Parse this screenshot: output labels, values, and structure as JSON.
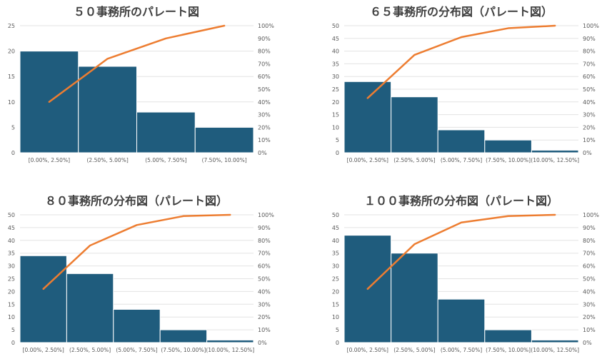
{
  "chart_data": [
    {
      "type": "bar",
      "title": "５０事務所のパレート図",
      "categories": [
        "[0.00%, 2.50%]",
        "(2.50%, 5.00%]",
        "(5.00%, 7.50%]",
        "(7.50%, 10.00%]"
      ],
      "values": [
        20,
        17,
        8,
        5
      ],
      "cumulative_percent": [
        40,
        74,
        90,
        100
      ],
      "ylim": [
        0,
        25
      ],
      "yticks": [
        0,
        5,
        10,
        15,
        20,
        25
      ],
      "y2lim": [
        0,
        100
      ],
      "y2ticks": [
        "0%",
        "10%",
        "20%",
        "30%",
        "40%",
        "50%",
        "60%",
        "70%",
        "80%",
        "90%",
        "100%"
      ],
      "grid": true,
      "bar_color": "#1f5c7d",
      "line_color": "#ed7d31"
    },
    {
      "type": "bar",
      "title": "６５事務所の分布図（パレート図）",
      "categories": [
        "[0.00%, 2.50%]",
        "(2.50%, 5.00%]",
        "(5.00%, 7.50%]",
        "(7.50%, 10.00%]",
        "(10.00%, 12.50%]"
      ],
      "values": [
        28,
        22,
        9,
        5,
        1
      ],
      "cumulative_percent": [
        43,
        77,
        91,
        98,
        100
      ],
      "ylim": [
        0,
        50
      ],
      "yticks": [
        0,
        5,
        10,
        15,
        20,
        25,
        30,
        35,
        40,
        45,
        50
      ],
      "y2lim": [
        0,
        100
      ],
      "y2ticks": [
        "0%",
        "10%",
        "20%",
        "30%",
        "40%",
        "50%",
        "60%",
        "70%",
        "80%",
        "90%",
        "100%"
      ],
      "grid": true,
      "bar_color": "#1f5c7d",
      "line_color": "#ed7d31"
    },
    {
      "type": "bar",
      "title": "８０事務所の分布図（パレート図）",
      "categories": [
        "[0.00%, 2.50%]",
        "(2.50%, 5.00%]",
        "(5.00%, 7.50%]",
        "(7.50%, 10.00%]",
        "(10.00%, 12.50%]"
      ],
      "values": [
        34,
        27,
        13,
        5,
        1
      ],
      "cumulative_percent": [
        42,
        76,
        92,
        99,
        100
      ],
      "ylim": [
        0,
        50
      ],
      "yticks": [
        0,
        5,
        10,
        15,
        20,
        25,
        30,
        35,
        40,
        45,
        50
      ],
      "y2lim": [
        0,
        100
      ],
      "y2ticks": [
        "0%",
        "10%",
        "20%",
        "30%",
        "40%",
        "50%",
        "60%",
        "70%",
        "80%",
        "90%",
        "100%"
      ],
      "grid": true,
      "bar_color": "#1f5c7d",
      "line_color": "#ed7d31"
    },
    {
      "type": "bar",
      "title": "１００事務所の分布図（パレート図）",
      "categories": [
        "[0.00%, 2.50%]",
        "(2.50%, 5.00%]",
        "(5.00%, 7.50%]",
        "(7.50%, 10.00%]",
        "(10.00%, 12.50%]"
      ],
      "values": [
        42,
        35,
        17,
        5,
        1
      ],
      "cumulative_percent": [
        42,
        77,
        94,
        99,
        100
      ],
      "ylim": [
        0,
        50
      ],
      "yticks": [
        0,
        5,
        10,
        15,
        20,
        25,
        30,
        35,
        40,
        45,
        50
      ],
      "y2lim": [
        0,
        100
      ],
      "y2ticks": [
        "0%",
        "10%",
        "20%",
        "30%",
        "40%",
        "50%",
        "60%",
        "70%",
        "80%",
        "90%",
        "100%"
      ],
      "grid": true,
      "bar_color": "#1f5c7d",
      "line_color": "#ed7d31"
    }
  ]
}
